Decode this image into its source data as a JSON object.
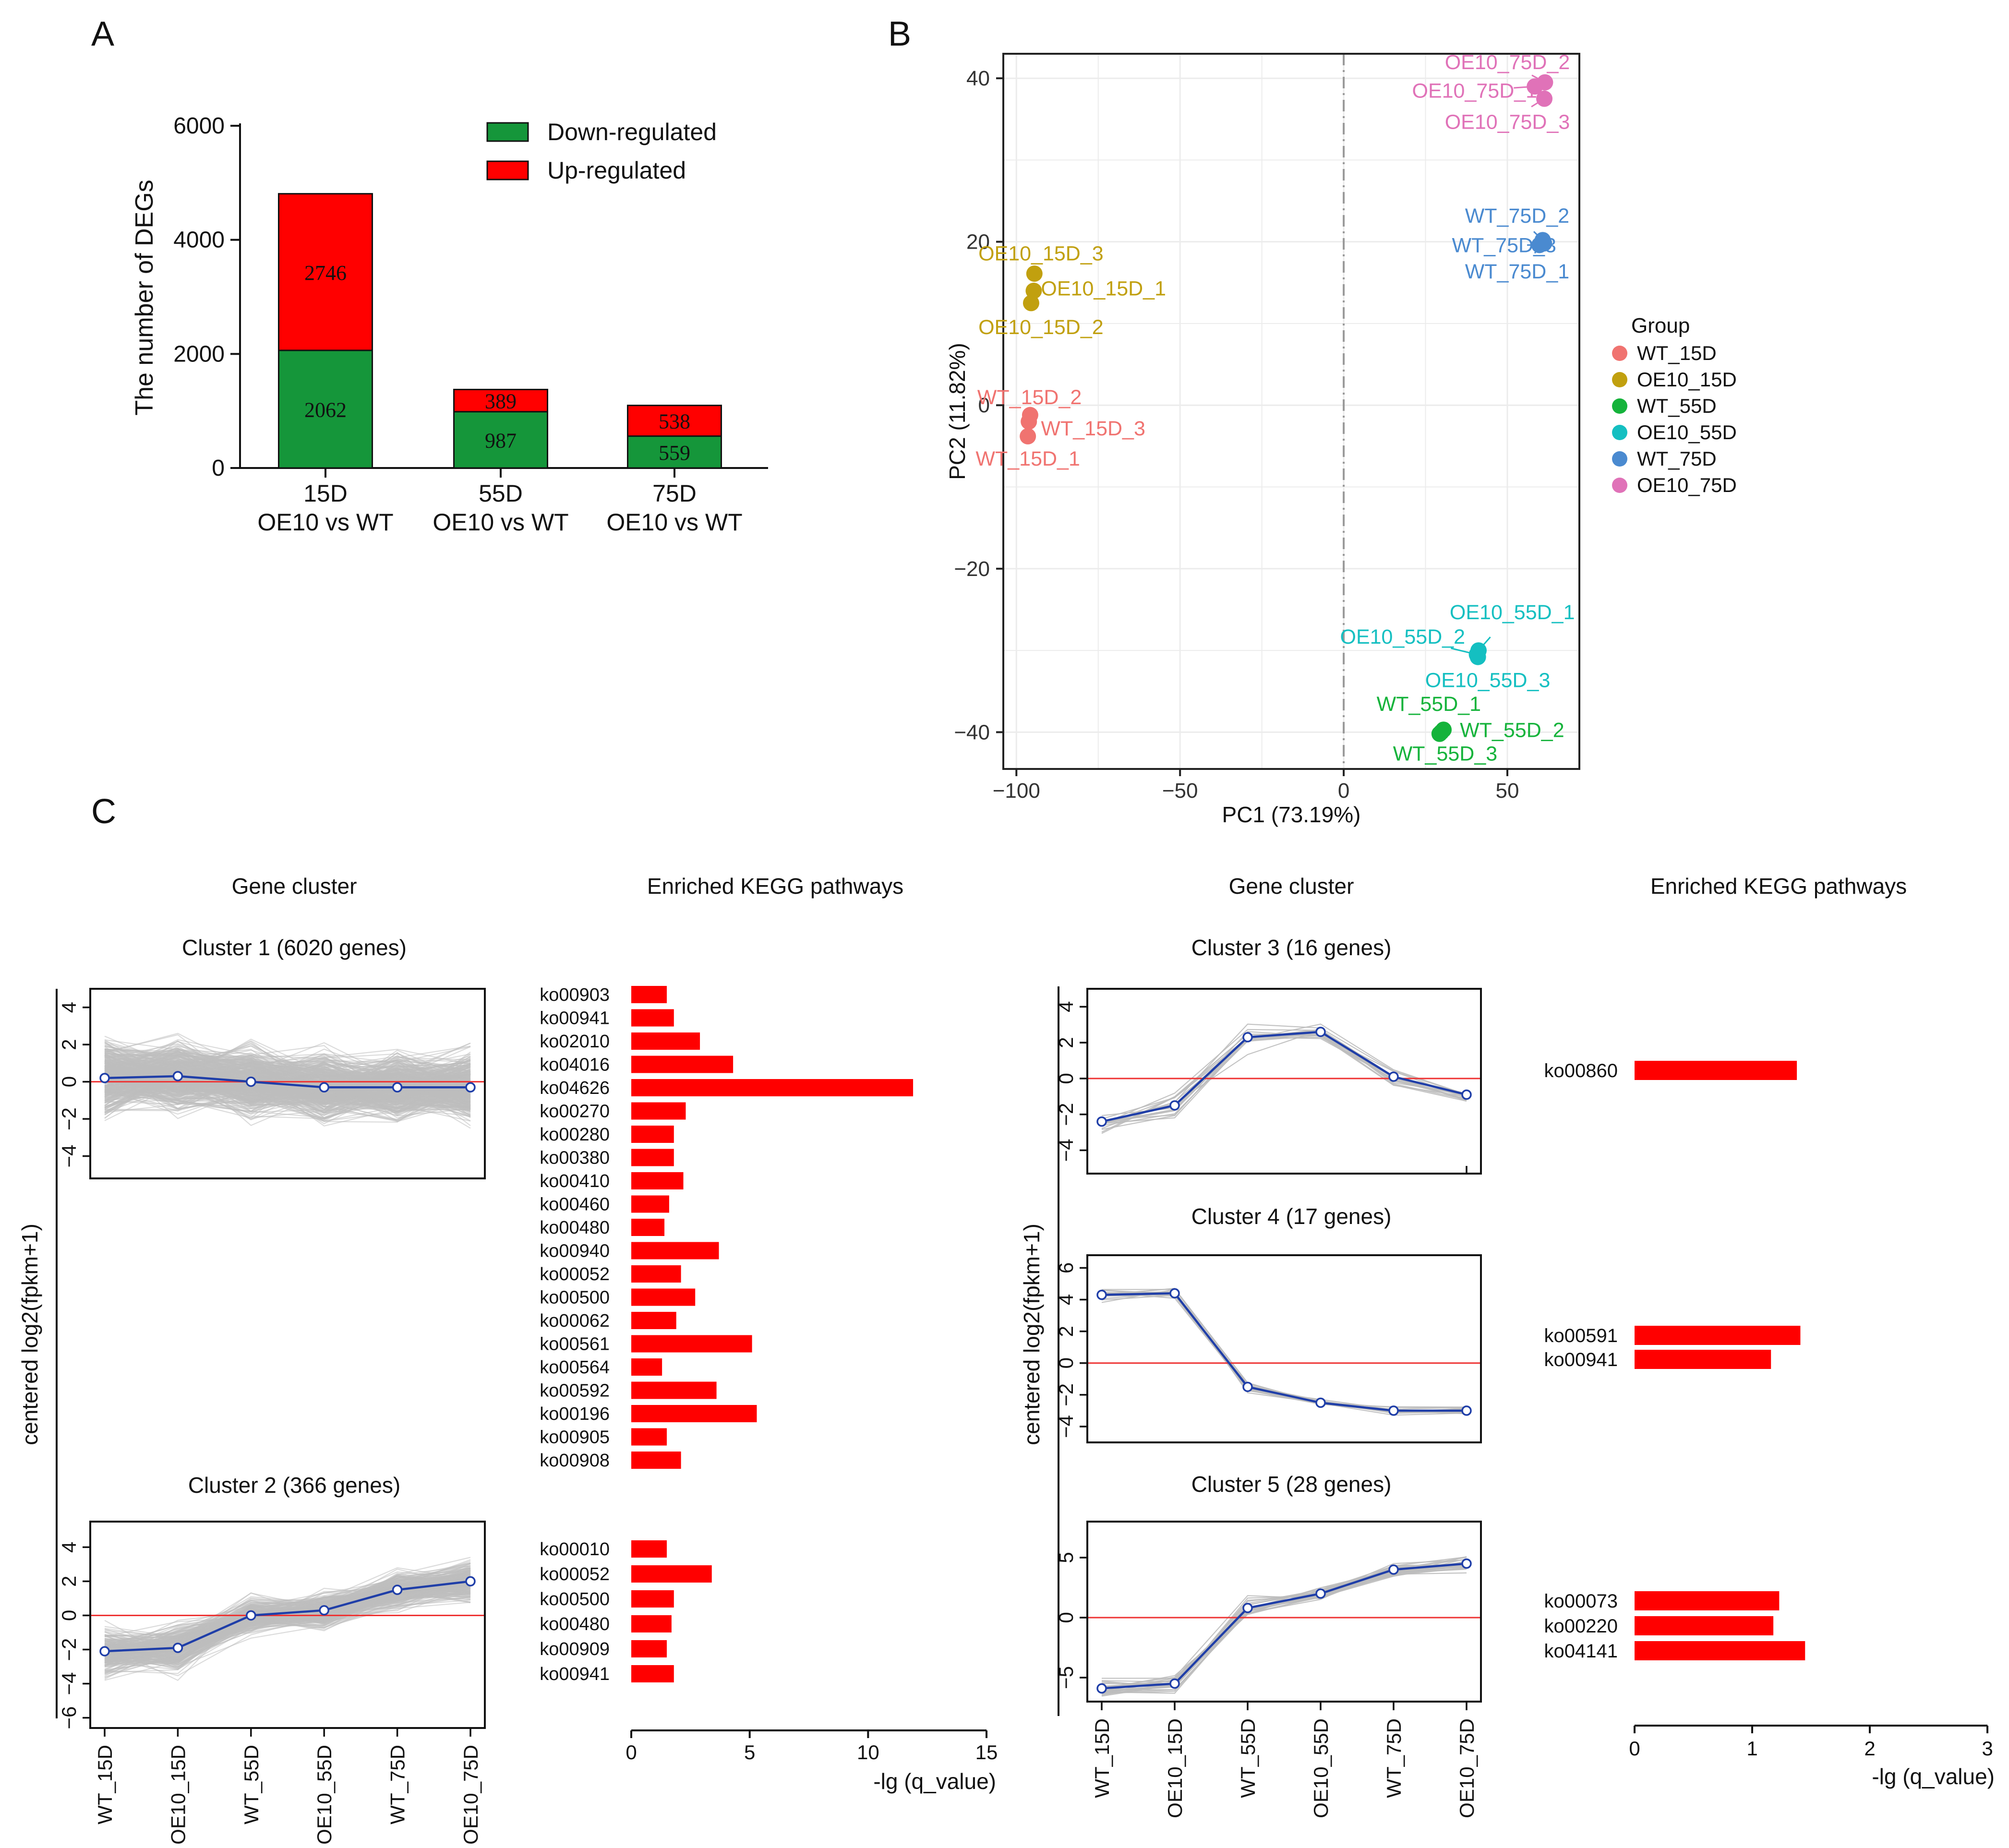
{
  "panels": {
    "a": "A",
    "b": "B",
    "c": "C"
  },
  "colors": {
    "down": "#15963a",
    "up": "#ff0000",
    "bar": "#ff0000",
    "grey": "#bdbdbd",
    "mean": "#1f3ea8",
    "zero": "#ee3333",
    "WT_15D": "#f07370",
    "OE10_15D": "#c1a00f",
    "WT_55D": "#15b33b",
    "OE10_55D": "#14bfc1",
    "WT_75D": "#4a8ad0",
    "OE10_75D": "#e072b8"
  },
  "chart_data": [
    {
      "id": "A",
      "type": "bar",
      "stacked": true,
      "ylabel": "The number of DEGs",
      "ylim": [
        0,
        6000
      ],
      "yticks": [
        "0",
        "2000",
        "4000",
        "6000"
      ],
      "categories": [
        {
          "line1": "15D",
          "line2": "OE10 vs WT"
        },
        {
          "line1": "55D",
          "line2": "OE10 vs WT"
        },
        {
          "line1": "75D",
          "line2": "OE10 vs WT"
        }
      ],
      "series": [
        {
          "name": "Down-regulated",
          "values": [
            2062,
            987,
            559
          ],
          "labels": [
            "2062",
            "987",
            "559"
          ]
        },
        {
          "name": "Up-regulated",
          "values": [
            2746,
            389,
            538
          ],
          "labels": [
            "2746",
            "389",
            "538"
          ]
        }
      ],
      "legend": [
        "Down-regulated",
        "Up-regulated"
      ]
    },
    {
      "id": "B",
      "type": "scatter",
      "xlabel": "PC1 (73.19%)",
      "ylabel": "PC2 (11.82%)",
      "xlim": [
        -104,
        72
      ],
      "ylim": [
        -44.5,
        43
      ],
      "xticks": [
        {
          "v": -100,
          "t": "−100"
        },
        {
          "v": -50,
          "t": "−50"
        },
        {
          "v": 0,
          "t": "0"
        },
        {
          "v": 50,
          "t": "50"
        }
      ],
      "yticks": [
        {
          "v": -40,
          "t": "−40"
        },
        {
          "v": -20,
          "t": "−20"
        },
        {
          "v": 0,
          "t": "0"
        },
        {
          "v": 20,
          "t": "20"
        },
        {
          "v": 40,
          "t": "40"
        }
      ],
      "legend_title": "Group",
      "groups": [
        "WT_15D",
        "OE10_15D",
        "WT_55D",
        "OE10_55D",
        "WT_75D",
        "OE10_75D"
      ],
      "points": [
        {
          "label": "WT_15D_1",
          "g": "WT_15D",
          "x": -96.5,
          "y": -3.8,
          "lx": -96.5,
          "ly": -6.5,
          "a": "middle"
        },
        {
          "label": "WT_15D_2",
          "g": "WT_15D",
          "x": -95.8,
          "y": -1.2,
          "lx": -96.0,
          "ly": 1.0,
          "a": "middle"
        },
        {
          "label": "WT_15D_3",
          "g": "WT_15D",
          "x": -96.2,
          "y": -2.0,
          "lx": -92.5,
          "ly": -2.8,
          "a": "start"
        },
        {
          "label": "OE10_15D_1",
          "g": "OE10_15D",
          "x": -94.7,
          "y": 14.0,
          "lx": -92.5,
          "ly": 14.3,
          "a": "start"
        },
        {
          "label": "OE10_15D_2",
          "g": "OE10_15D",
          "x": -95.5,
          "y": 12.5,
          "lx": -92.5,
          "ly": 9.6,
          "a": "middle"
        },
        {
          "label": "OE10_15D_3",
          "g": "OE10_15D",
          "x": -94.5,
          "y": 16.1,
          "lx": -92.5,
          "ly": 18.6,
          "a": "middle"
        },
        {
          "label": "WT_55D_1",
          "g": "WT_55D",
          "x": 29.8,
          "y": -40.0,
          "lx": 26.0,
          "ly": -36.5,
          "a": "middle"
        },
        {
          "label": "WT_55D_2",
          "g": "WT_55D",
          "x": 30.5,
          "y": -39.7,
          "lx": 35.5,
          "ly": -39.7,
          "a": "start"
        },
        {
          "label": "WT_55D_3",
          "g": "WT_55D",
          "x": 29.3,
          "y": -40.2,
          "lx": 31.0,
          "ly": -42.6,
          "a": "middle"
        },
        {
          "label": "OE10_55D_1",
          "g": "OE10_55D",
          "x": 41.2,
          "y": -30.0,
          "lx": 51.5,
          "ly": -25.3,
          "a": "middle"
        },
        {
          "label": "OE10_55D_2",
          "g": "OE10_55D",
          "x": 40.7,
          "y": -30.5,
          "lx": 18.0,
          "ly": -28.3,
          "a": "middle"
        },
        {
          "label": "OE10_55D_3",
          "g": "OE10_55D",
          "x": 41.0,
          "y": -30.8,
          "lx": 44.0,
          "ly": -33.6,
          "a": "middle"
        },
        {
          "label": "WT_75D_1",
          "g": "WT_75D",
          "x": 61.2,
          "y": 19.8,
          "lx": 53.0,
          "ly": 16.4,
          "a": "middle"
        },
        {
          "label": "WT_75D_2",
          "g": "WT_75D",
          "x": 60.8,
          "y": 20.2,
          "lx": 53.0,
          "ly": 23.2,
          "a": "middle"
        },
        {
          "label": "WT_75D_3",
          "g": "WT_75D",
          "x": 59.8,
          "y": 19.6,
          "lx": 49.0,
          "ly": 19.6,
          "a": "middle"
        },
        {
          "label": "OE10_75D_1",
          "g": "OE10_75D",
          "x": 58.4,
          "y": 39.0,
          "lx": 40.0,
          "ly": 38.5,
          "a": "middle"
        },
        {
          "label": "OE10_75D_2",
          "g": "OE10_75D",
          "x": 61.5,
          "y": 39.5,
          "lx": 50.0,
          "ly": 42.0,
          "a": "middle"
        },
        {
          "label": "OE10_75D_3",
          "g": "OE10_75D",
          "x": 61.3,
          "y": 37.5,
          "lx": 50.0,
          "ly": 34.7,
          "a": "middle"
        }
      ]
    },
    {
      "id": "C",
      "type": "line",
      "gene_cluster_title": "Gene cluster",
      "kegg_title": "Enriched KEGG pathways",
      "ylabel": "centered log2(fpkm+1)",
      "xlabel_kegg": "-lg (q_value)",
      "x": [
        "WT_15D",
        "OE10_15D",
        "WT_55D",
        "OE10_55D",
        "WT_75D",
        "OE10_75D"
      ],
      "clusters": [
        {
          "name": "Cluster 1",
          "genes": "(6020 genes)",
          "ylim": [
            -5.2,
            5.0
          ],
          "yticks": [
            "−4",
            "−2",
            "0",
            "2",
            "4"
          ],
          "ytickv": [
            -4,
            -2,
            0,
            2,
            4
          ],
          "mean": [
            0.2,
            0.3,
            0.0,
            -0.3,
            -0.3,
            -0.3
          ],
          "spread": [
            3.2,
            3.2,
            3.0,
            3.0,
            2.9,
            2.9
          ],
          "lines": 420,
          "seed": 11
        },
        {
          "name": "Cluster 2",
          "genes": "(366 genes)",
          "ylim": [
            -6.6,
            5.5
          ],
          "yticks": [
            "−6",
            "−4",
            "−2",
            "0",
            "2",
            "4"
          ],
          "ytickv": [
            -6,
            -4,
            -2,
            0,
            2,
            4
          ],
          "mean": [
            -2.1,
            -1.9,
            0.0,
            0.3,
            1.5,
            2.0
          ],
          "spread": [
            2.4,
            2.4,
            1.8,
            1.8,
            1.9,
            2.0
          ],
          "lines": 230,
          "seed": 22
        },
        {
          "name": "Cluster 3",
          "genes": "(16 genes)",
          "ylim": [
            -5.3,
            5.0
          ],
          "yticks": [
            "−4",
            "−2",
            "0",
            "2",
            "4"
          ],
          "ytickv": [
            -4,
            -2,
            0,
            2,
            4
          ],
          "mean": [
            -2.4,
            -1.5,
            2.3,
            2.6,
            0.1,
            -0.9
          ],
          "spread": [
            1.2,
            1.2,
            1.3,
            1.0,
            0.9,
            0.9
          ],
          "lines": 16,
          "seed": 33
        },
        {
          "name": "Cluster 4",
          "genes": "(17 genes)",
          "ylim": [
            -5.0,
            6.8
          ],
          "yticks": [
            "−4",
            "−2",
            "0",
            "2",
            "4",
            "6"
          ],
          "ytickv": [
            -4,
            -2,
            0,
            2,
            4,
            6
          ],
          "mean": [
            4.3,
            4.4,
            -1.5,
            -2.5,
            -3.0,
            -3.0
          ],
          "spread": [
            0.8,
            0.8,
            0.6,
            0.5,
            0.4,
            0.4
          ],
          "lines": 17,
          "seed": 44
        },
        {
          "name": "Cluster 5",
          "genes": "(28 genes)",
          "ylim": [
            -7.0,
            8.0
          ],
          "yticks": [
            "−5",
            "0",
            "5"
          ],
          "ytickv": [
            -5,
            0,
            5
          ],
          "mean": [
            -5.9,
            -5.5,
            0.8,
            2.0,
            4.0,
            4.5
          ],
          "spread": [
            1.2,
            1.2,
            1.4,
            1.2,
            1.3,
            1.2
          ],
          "lines": 28,
          "seed": 55
        }
      ],
      "kegg_left": {
        "xlim": [
          0,
          15
        ],
        "xticks": [
          "0",
          "5",
          "10",
          "15"
        ],
        "cluster1": [
          {
            "id": "ko00903",
            "v": 1.5
          },
          {
            "id": "ko00941",
            "v": 1.8
          },
          {
            "id": "ko02010",
            "v": 2.9
          },
          {
            "id": "ko04016",
            "v": 4.3
          },
          {
            "id": "ko04626",
            "v": 11.9
          },
          {
            "id": "ko00270",
            "v": 2.3
          },
          {
            "id": "ko00280",
            "v": 1.8
          },
          {
            "id": "ko00380",
            "v": 1.8
          },
          {
            "id": "ko00410",
            "v": 2.2
          },
          {
            "id": "ko00460",
            "v": 1.6
          },
          {
            "id": "ko00480",
            "v": 1.4
          },
          {
            "id": "ko00940",
            "v": 3.7
          },
          {
            "id": "ko00052",
            "v": 2.1
          },
          {
            "id": "ko00500",
            "v": 2.7
          },
          {
            "id": "ko00062",
            "v": 1.9
          },
          {
            "id": "ko00561",
            "v": 5.1
          },
          {
            "id": "ko00564",
            "v": 1.3
          },
          {
            "id": "ko00592",
            "v": 3.6
          },
          {
            "id": "ko00196",
            "v": 5.3
          },
          {
            "id": "ko00905",
            "v": 1.5
          },
          {
            "id": "ko00908",
            "v": 2.1
          }
        ],
        "cluster2": [
          {
            "id": "ko00010",
            "v": 1.5
          },
          {
            "id": "ko00052",
            "v": 3.4
          },
          {
            "id": "ko00500",
            "v": 1.8
          },
          {
            "id": "ko00480",
            "v": 1.7
          },
          {
            "id": "ko00909",
            "v": 1.5
          },
          {
            "id": "ko00941",
            "v": 1.8
          }
        ]
      },
      "kegg_right": {
        "xlim": [
          0,
          3
        ],
        "xticks": [
          "0",
          "1",
          "2",
          "3"
        ],
        "cluster3": [
          {
            "id": "ko00860",
            "v": 1.38
          }
        ],
        "cluster4": [
          {
            "id": "ko00591",
            "v": 1.41
          },
          {
            "id": "ko00941",
            "v": 1.16
          }
        ],
        "cluster5": [
          {
            "id": "ko00073",
            "v": 1.23
          },
          {
            "id": "ko00220",
            "v": 1.18
          },
          {
            "id": "ko04141",
            "v": 1.45
          }
        ]
      }
    }
  ]
}
